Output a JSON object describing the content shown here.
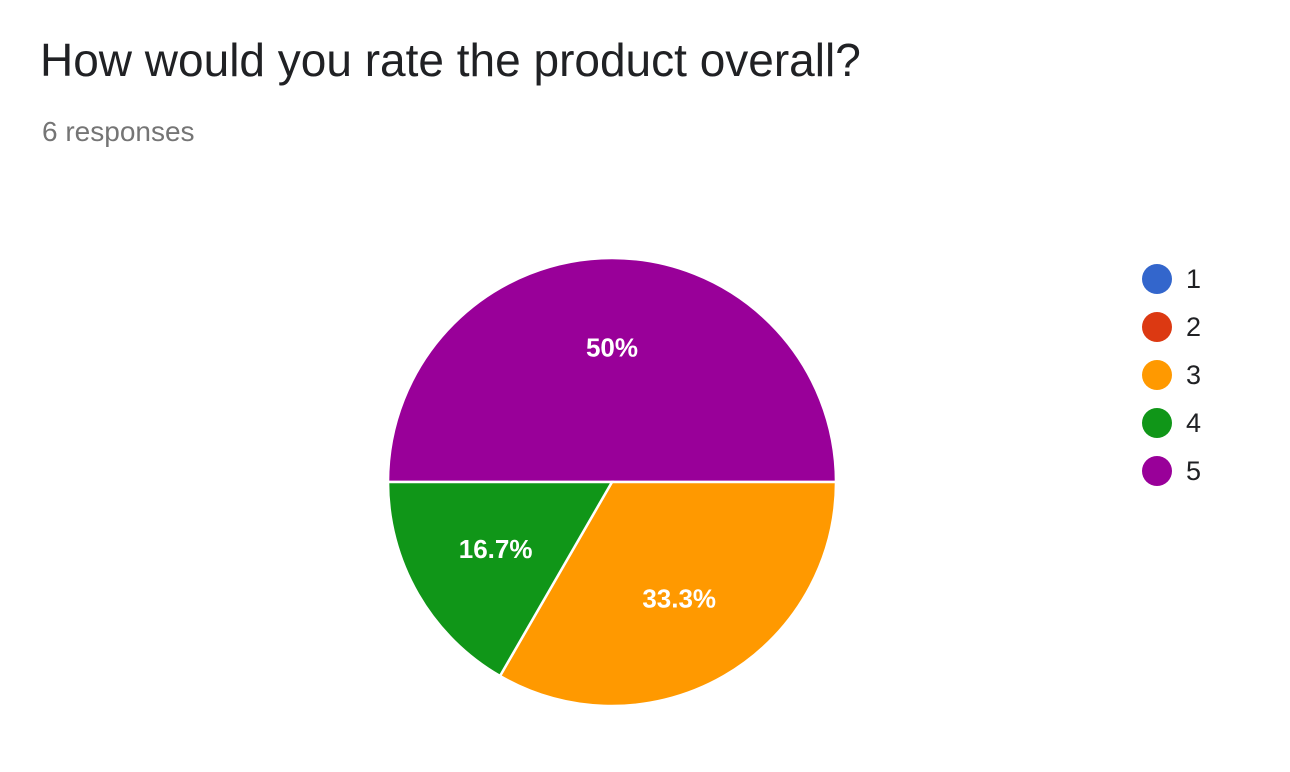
{
  "header": {
    "question": "How would you rate the product overall?",
    "responses": "6 responses"
  },
  "chart_data": {
    "type": "pie",
    "title": "How would you rate the product overall?",
    "categories": [
      "1",
      "2",
      "3",
      "4",
      "5"
    ],
    "values": [
      0,
      0,
      2,
      1,
      3
    ],
    "percent_labels": [
      "",
      "",
      "33.3%",
      "16.7%",
      "50%"
    ],
    "colors": [
      "#3366cc",
      "#dc3912",
      "#ff9900",
      "#109618",
      "#990099"
    ],
    "legend_position": "right"
  }
}
